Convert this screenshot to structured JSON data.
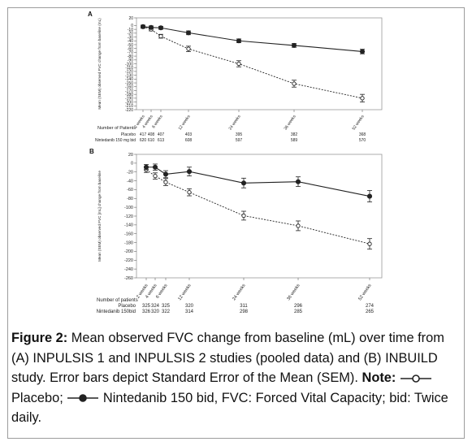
{
  "chart_data": [
    {
      "panel": "A",
      "type": "line",
      "ylabel": "Mean (SEM) observed FVC change from baseline (mL)",
      "ylim": [
        -220,
        20
      ],
      "yticks": [
        20,
        0,
        -10,
        -20,
        -30,
        -40,
        -50,
        -60,
        -70,
        -80,
        -90,
        -100,
        -110,
        -120,
        -130,
        -140,
        -150,
        -160,
        -170,
        -180,
        -190,
        -200,
        -210,
        -220
      ],
      "x": [
        2,
        4,
        6,
        12,
        24,
        36,
        52
      ],
      "xtick_labels": [
        "2 weeks",
        "4 weeks",
        "6 weeks",
        "12 weeks",
        "24 weeks",
        "36 weeks",
        "52 weeks"
      ],
      "series": [
        {
          "key": "placebo",
          "values": [
            -3,
            -10,
            -28,
            -61,
            -100,
            -152,
            -190
          ],
          "err": [
            4,
            4,
            5,
            7,
            8,
            9,
            10
          ]
        },
        {
          "key": "nintedanib",
          "values": [
            -3,
            -5,
            -6,
            -19,
            -40,
            -52,
            -68
          ],
          "err": [
            4,
            4,
            4,
            5,
            5,
            5,
            6
          ]
        }
      ],
      "patients": {
        "header": "Number of Patients",
        "rows": [
          {
            "label": "Placebo",
            "values": [
              "417",
              "408",
              "407",
              "403",
              "395",
              "382",
              "368"
            ]
          },
          {
            "label": "Nintedanib 150 mg bid",
            "values": [
              "620",
              "610",
              "613",
              "608",
              "597",
              "589",
              "570"
            ]
          }
        ]
      }
    },
    {
      "panel": "B",
      "type": "line",
      "ylabel": "Mean (SEM) observed FVC [mL] change from baseline",
      "ylim": [
        -260,
        20
      ],
      "yticks": [
        20,
        0,
        -20,
        -40,
        -60,
        -80,
        -100,
        -120,
        -140,
        -160,
        -180,
        -200,
        -220,
        -240,
        -260
      ],
      "x": [
        2,
        4,
        6,
        12,
        24,
        36,
        52
      ],
      "xtick_labels": [
        "2 weeks",
        "4 weeks",
        "6 weeks",
        "12 weeks",
        "24 weeks",
        "36 weeks",
        "52 weeks"
      ],
      "series": [
        {
          "key": "placebo",
          "values": [
            -15,
            -29,
            -43,
            -66,
            -119,
            -142,
            -183
          ],
          "err": [
            6,
            7,
            8,
            8,
            10,
            11,
            12
          ]
        },
        {
          "key": "nintedanib",
          "values": [
            -9,
            -9,
            -25,
            -19,
            -45,
            -42,
            -75
          ],
          "err": [
            6,
            7,
            8,
            10,
            11,
            11,
            13
          ]
        }
      ],
      "patients": {
        "header": "Number of patients",
        "rows": [
          {
            "label": "Placebo",
            "values": [
              "325",
              "324",
              "325",
              "320",
              "311",
              "296",
              "274"
            ]
          },
          {
            "label": "Nintedanib 150bid",
            "values": [
              "326",
              "320",
              "322",
              "314",
              "298",
              "285",
              "265"
            ]
          }
        ]
      }
    }
  ],
  "caption": {
    "figure_label": "Figure 2:",
    "text": "Mean observed FVC change from baseline (mL) over time from (A) INPULSIS 1 and INPULSIS 2 studies (pooled data) and (B) INBUILD study. Error bars depict Standard Error of the Mean (SEM).",
    "note_label": "Note:",
    "placebo_label": "Placebo;",
    "nintedanib_label": "Nintedanib 150 bid,",
    "tail": "FVC: Forced Vital Capacity; bid: Twice daily."
  }
}
